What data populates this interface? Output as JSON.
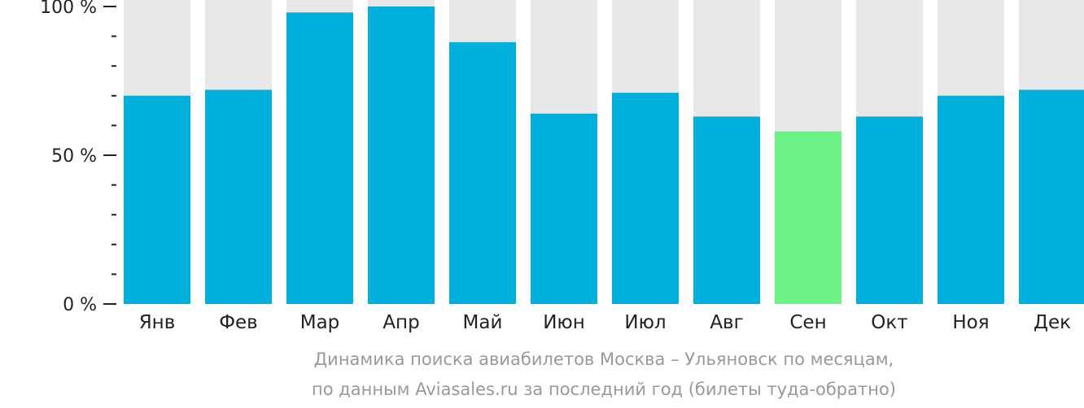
{
  "chart_data": {
    "type": "bar",
    "categories": [
      "Янв",
      "Фев",
      "Мар",
      "Апр",
      "Май",
      "Июн",
      "Июл",
      "Авг",
      "Сен",
      "Окт",
      "Ноя",
      "Дек"
    ],
    "values": [
      70,
      72,
      98,
      100,
      88,
      64,
      71,
      63,
      58,
      63,
      70,
      72
    ],
    "highlight_index": 8,
    "ylim": [
      0,
      100
    ],
    "y_ticks": [
      {
        "value": 100,
        "label": "100 %"
      },
      {
        "value": 50,
        "label": "50 %"
      },
      {
        "value": 0,
        "label": "0 %"
      }
    ],
    "minor_tick_step": 10,
    "colors": {
      "bar": "#00b0dc",
      "highlight": "#6cf285",
      "background": "#e8e8e8",
      "axis": "#222222"
    }
  },
  "caption": {
    "line1": "Динамика поиска авиабилетов Москва – Ульяновск по месяцам,",
    "line2": "по данным Aviasales.ru за последний год (билеты туда-обратно)"
  }
}
